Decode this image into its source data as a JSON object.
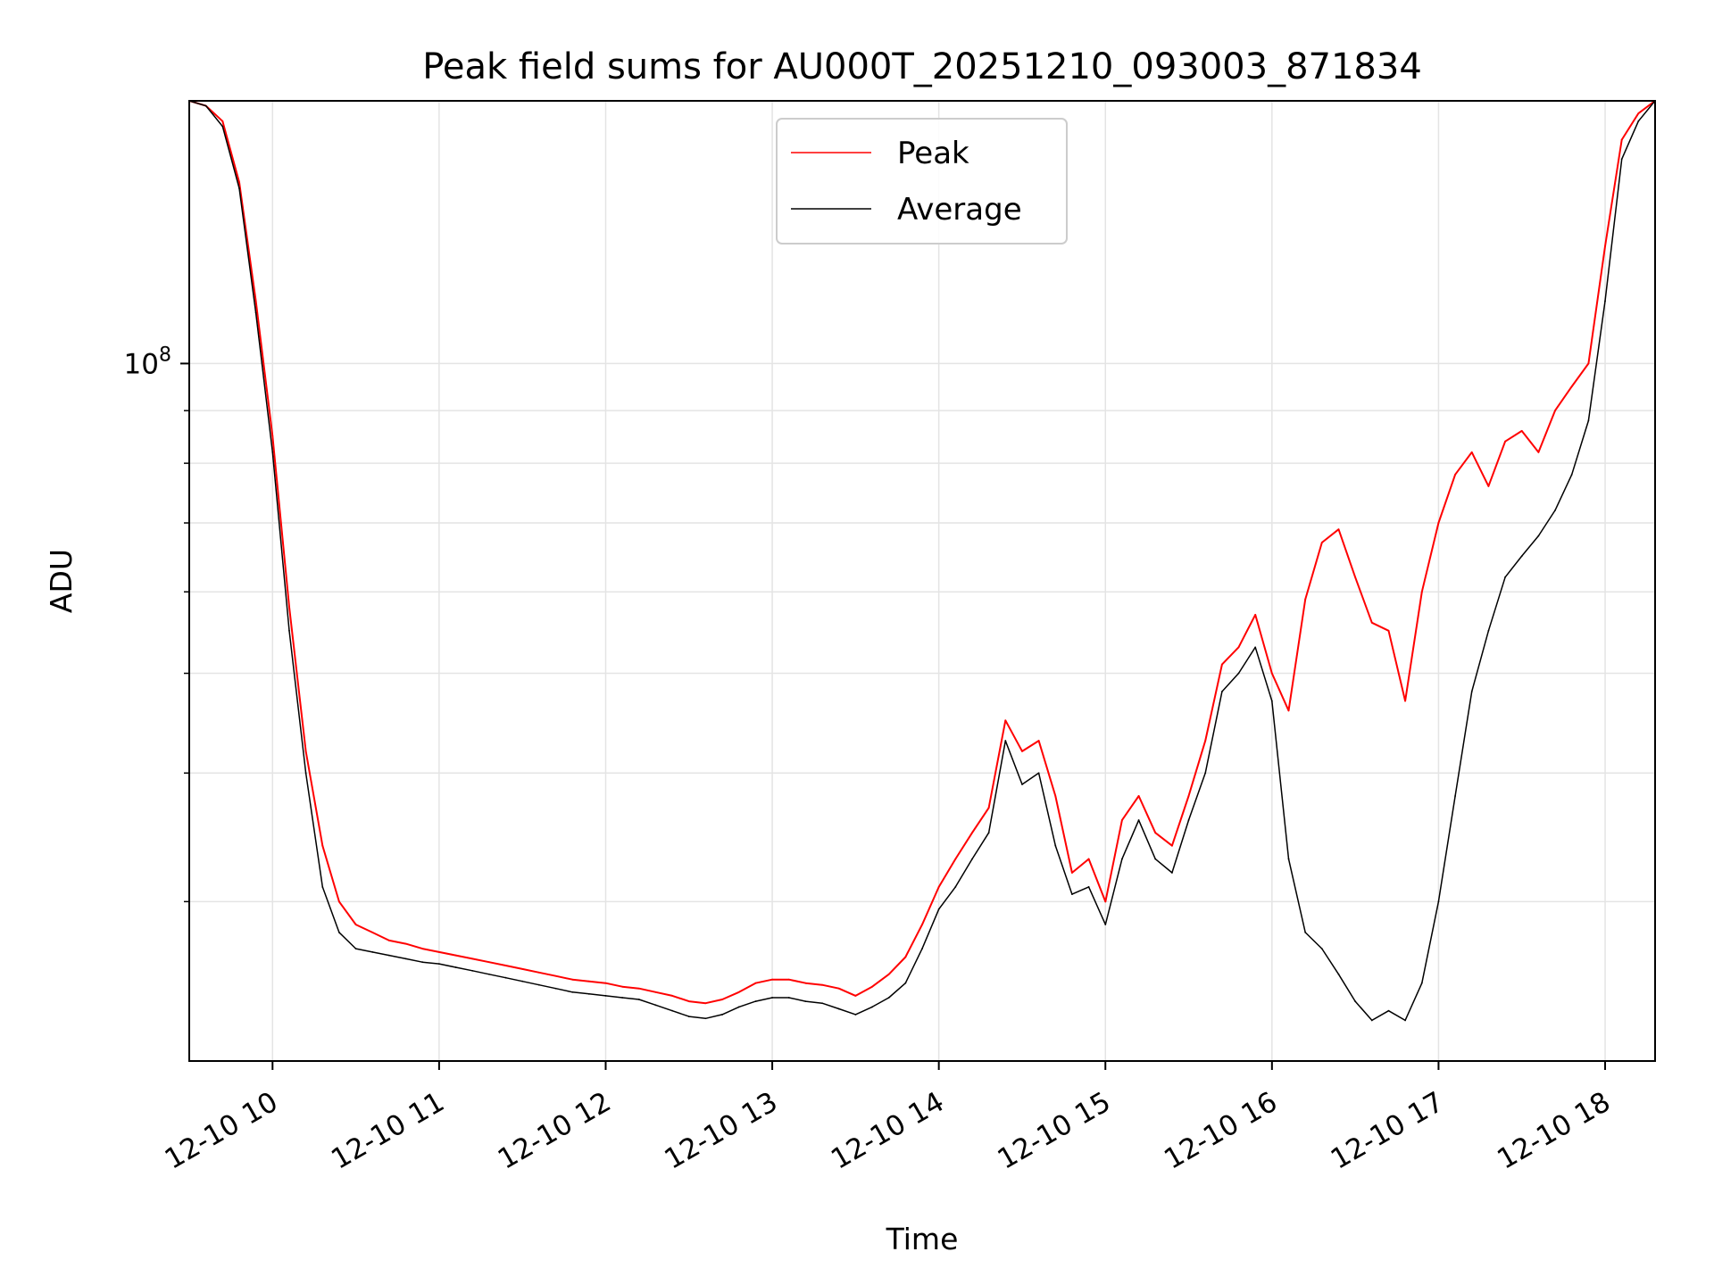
{
  "chart_data": {
    "type": "line",
    "title": "Peak field sums for AU000T_20251210_093003_871834",
    "xlabel": "Time",
    "ylabel": "ADU",
    "y_scale": "log",
    "ylim": [
      21000000,
      180000000
    ],
    "xlim": [
      9.5,
      18.3
    ],
    "grid": true,
    "legend_position": "top-center",
    "x_ticks": [
      {
        "value": 10,
        "label": "12-10 10"
      },
      {
        "value": 11,
        "label": "12-10 11"
      },
      {
        "value": 12,
        "label": "12-10 12"
      },
      {
        "value": 13,
        "label": "12-10 13"
      },
      {
        "value": 14,
        "label": "12-10 14"
      },
      {
        "value": 15,
        "label": "12-10 15"
      },
      {
        "value": 16,
        "label": "12-10 16"
      },
      {
        "value": 17,
        "label": "12-10 17"
      },
      {
        "value": 18,
        "label": "12-10 18"
      }
    ],
    "y_major_ticks": [
      {
        "value": 100000000,
        "label_base": "10",
        "label_exp": "8"
      }
    ],
    "y_minor_ticks": [
      30000000,
      40000000,
      50000000,
      60000000,
      70000000,
      80000000,
      90000000,
      200000000
    ],
    "series": [
      {
        "name": "Peak",
        "color": "#ff0000",
        "x": [
          9.5,
          9.6,
          9.7,
          9.8,
          9.9,
          10.0,
          10.1,
          10.2,
          10.3,
          10.4,
          10.5,
          10.6,
          10.7,
          10.8,
          10.9,
          11.0,
          11.1,
          11.2,
          11.3,
          11.4,
          11.5,
          11.6,
          11.7,
          11.8,
          11.9,
          12.0,
          12.1,
          12.2,
          12.3,
          12.4,
          12.5,
          12.6,
          12.7,
          12.8,
          12.9,
          13.0,
          13.1,
          13.2,
          13.3,
          13.4,
          13.5,
          13.6,
          13.7,
          13.8,
          13.9,
          14.0,
          14.1,
          14.2,
          14.3,
          14.4,
          14.5,
          14.6,
          14.7,
          14.8,
          14.9,
          15.0,
          15.1,
          15.2,
          15.3,
          15.4,
          15.5,
          15.6,
          15.7,
          15.8,
          15.9,
          16.0,
          16.1,
          16.2,
          16.3,
          16.4,
          16.5,
          16.6,
          16.7,
          16.8,
          16.9,
          17.0,
          17.1,
          17.2,
          17.3,
          17.4,
          17.5,
          17.6,
          17.7,
          17.8,
          17.9,
          18.0,
          18.1,
          18.2,
          18.3
        ],
        "values": [
          180000000,
          178000000,
          172000000,
          150000000,
          115000000,
          85000000,
          58000000,
          42000000,
          34000000,
          30000000,
          28500000,
          28000000,
          27500000,
          27300000,
          27000000,
          26800000,
          26600000,
          26400000,
          26200000,
          26000000,
          25800000,
          25600000,
          25400000,
          25200000,
          25100000,
          25000000,
          24800000,
          24700000,
          24500000,
          24300000,
          24000000,
          23900000,
          24100000,
          24500000,
          25000000,
          25200000,
          25200000,
          25000000,
          24900000,
          24700000,
          24300000,
          24800000,
          25500000,
          26500000,
          28500000,
          31000000,
          33000000,
          35000000,
          37000000,
          45000000,
          42000000,
          43000000,
          38000000,
          32000000,
          33000000,
          30000000,
          36000000,
          38000000,
          35000000,
          34000000,
          38000000,
          43000000,
          51000000,
          53000000,
          57000000,
          50000000,
          46000000,
          59000000,
          67000000,
          69000000,
          62000000,
          56000000,
          55000000,
          47000000,
          60000000,
          70000000,
          78000000,
          82000000,
          76000000,
          84000000,
          86000000,
          82000000,
          90000000,
          95000000,
          100000000,
          130000000,
          165000000,
          175000000,
          180000000
        ]
      },
      {
        "name": "Average",
        "color": "#000000",
        "x": [
          9.5,
          9.6,
          9.7,
          9.8,
          9.9,
          10.0,
          10.1,
          10.2,
          10.3,
          10.4,
          10.5,
          10.6,
          10.7,
          10.8,
          10.9,
          11.0,
          11.1,
          11.2,
          11.3,
          11.4,
          11.5,
          11.6,
          11.7,
          11.8,
          11.9,
          12.0,
          12.1,
          12.2,
          12.3,
          12.4,
          12.5,
          12.6,
          12.7,
          12.8,
          12.9,
          13.0,
          13.1,
          13.2,
          13.3,
          13.4,
          13.5,
          13.6,
          13.7,
          13.8,
          13.9,
          14.0,
          14.1,
          14.2,
          14.3,
          14.4,
          14.5,
          14.6,
          14.7,
          14.8,
          14.9,
          15.0,
          15.1,
          15.2,
          15.3,
          15.4,
          15.5,
          15.6,
          15.7,
          15.8,
          15.9,
          16.0,
          16.1,
          16.2,
          16.3,
          16.4,
          16.5,
          16.6,
          16.7,
          16.8,
          16.9,
          17.0,
          17.1,
          17.2,
          17.3,
          17.4,
          17.5,
          17.6,
          17.7,
          17.8,
          17.9,
          18.0,
          18.1,
          18.2,
          18.3
        ],
        "values": [
          180000000,
          178000000,
          170000000,
          148000000,
          112000000,
          82000000,
          55000000,
          40000000,
          31000000,
          28000000,
          27000000,
          26800000,
          26600000,
          26400000,
          26200000,
          26100000,
          25900000,
          25700000,
          25500000,
          25300000,
          25100000,
          24900000,
          24700000,
          24500000,
          24400000,
          24300000,
          24200000,
          24100000,
          23800000,
          23500000,
          23200000,
          23100000,
          23300000,
          23700000,
          24000000,
          24200000,
          24200000,
          24000000,
          23900000,
          23600000,
          23300000,
          23700000,
          24200000,
          25000000,
          27000000,
          29500000,
          31000000,
          33000000,
          35000000,
          43000000,
          39000000,
          40000000,
          34000000,
          30500000,
          31000000,
          28500000,
          33000000,
          36000000,
          33000000,
          32000000,
          36000000,
          40000000,
          48000000,
          50000000,
          53000000,
          47000000,
          33000000,
          28000000,
          27000000,
          25500000,
          24000000,
          23000000,
          23500000,
          23000000,
          25000000,
          30000000,
          38000000,
          48000000,
          55000000,
          62000000,
          65000000,
          68000000,
          72000000,
          78000000,
          88000000,
          115000000,
          158000000,
          172000000,
          180000000
        ]
      }
    ]
  }
}
